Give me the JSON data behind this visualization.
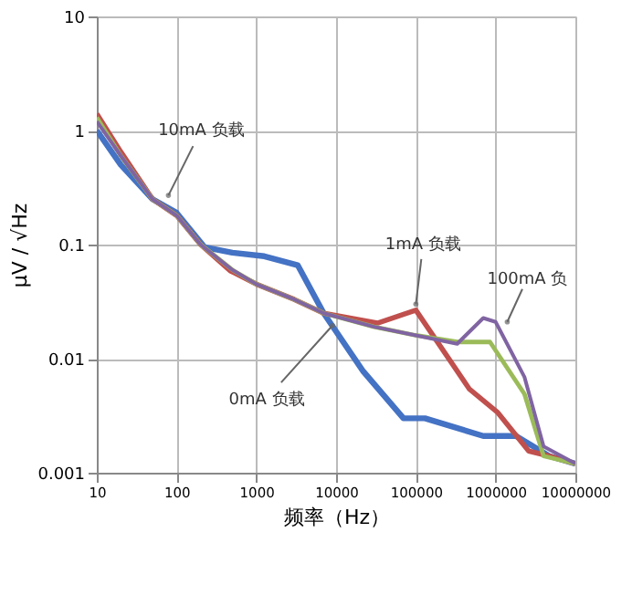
{
  "chart_data": {
    "type": "line",
    "xlabel": "频率（Hz）",
    "ylabel": "µV / √Hz",
    "log": "xy",
    "grid": true,
    "marker": "none",
    "line_style": "solid",
    "xlim": [
      10,
      10000000
    ],
    "ylim": [
      0.001,
      10
    ],
    "xticks": [
      10,
      100,
      1000,
      10000,
      100000,
      1000000,
      10000000
    ],
    "yticks": [
      0.001,
      0.01,
      0.1,
      1,
      10
    ],
    "annotations": [
      {
        "text": "10mA 负载",
        "x": 79,
        "y": 0.27
      },
      {
        "text": "1mA 负载",
        "x": 100000,
        "y": 0.03
      },
      {
        "text": "100mA 负",
        "x": 1400000,
        "y": 0.021
      },
      {
        "text": "0mA 负载",
        "x": 9000,
        "y": 0.0195
      }
    ],
    "series": [
      {
        "color": "#4472c4",
        "x": [
          10,
          20,
          50,
          100,
          224,
          500,
          1260,
          3300,
          7000,
          22000,
          70000,
          130000,
          700000,
          1800000,
          4700000,
          10000000
        ],
        "values": [
          1.0,
          0.5,
          0.25,
          0.19,
          0.095,
          0.085,
          0.079,
          0.066,
          0.025,
          0.0077,
          0.003,
          0.003,
          0.0021,
          0.0021,
          0.0014,
          0.0012
        ]
      },
      {
        "color": "#c0504d",
        "x": [
          10,
          20,
          50,
          100,
          200,
          470,
          1000,
          3000,
          7000,
          33000,
          100000,
          470000,
          1050000,
          2600000,
          4700000,
          10000000
        ],
        "values": [
          1.4,
          0.65,
          0.25,
          0.18,
          0.1,
          0.059,
          0.045,
          0.033,
          0.025,
          0.0205,
          0.0266,
          0.0054,
          0.0034,
          0.00155,
          0.0014,
          0.0012
        ]
      },
      {
        "color": "#9bbb59",
        "x": [
          10,
          20,
          50,
          100,
          200,
          500,
          1000,
          3000,
          7000,
          30000,
          100000,
          330000,
          850000,
          2300000,
          4000000,
          10000000
        ],
        "values": [
          1.3,
          0.6,
          0.25,
          0.18,
          0.1,
          0.06,
          0.045,
          0.033,
          0.025,
          0.019,
          0.016,
          0.014,
          0.014,
          0.0049,
          0.0014,
          0.0012
        ]
      },
      {
        "color": "#8064a2",
        "x": [
          10,
          20,
          50,
          100,
          200,
          500,
          1000,
          3000,
          7000,
          30000,
          100000,
          330000,
          700000,
          1000000,
          2300000,
          4000000,
          10000000
        ],
        "values": [
          1.2,
          0.6,
          0.25,
          0.18,
          0.1,
          0.06,
          0.045,
          0.033,
          0.025,
          0.019,
          0.016,
          0.0135,
          0.0227,
          0.021,
          0.0069,
          0.0017,
          0.0012
        ]
      }
    ]
  }
}
